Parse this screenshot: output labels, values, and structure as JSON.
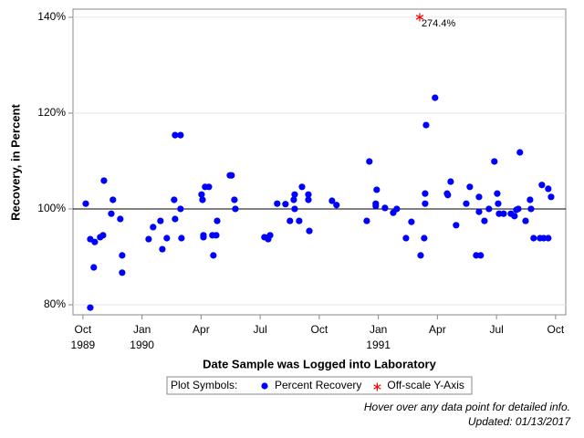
{
  "chart_data": {
    "type": "scatter",
    "ylabel": "Recovery, in Percent",
    "xlabel": "Date Sample was Logged into Laboratory",
    "xlim": [
      1989.708,
      1991.793
    ],
    "ylim": [
      77.9,
      141.7
    ],
    "xticks": [
      {
        "value": 1989.75,
        "label": "Oct"
      },
      {
        "value": 1990.0,
        "label": "Jan"
      },
      {
        "value": 1990.25,
        "label": "Apr"
      },
      {
        "value": 1990.5,
        "label": "Jul"
      },
      {
        "value": 1990.75,
        "label": "Oct"
      },
      {
        "value": 1991.0,
        "label": "Jan"
      },
      {
        "value": 1991.25,
        "label": "Apr"
      },
      {
        "value": 1991.5,
        "label": "Jul"
      },
      {
        "value": 1991.75,
        "label": "Oct"
      }
    ],
    "xtick_years": [
      {
        "value": 1989.75,
        "label": "1989"
      },
      {
        "value": 1990.0,
        "label": "1990"
      },
      {
        "value": 1991.0,
        "label": "1991"
      }
    ],
    "yticks": [
      {
        "value": 80,
        "label": "80%"
      },
      {
        "value": 100,
        "label": "100%"
      },
      {
        "value": 120,
        "label": "120%"
      },
      {
        "value": 140,
        "label": "140%"
      }
    ],
    "grid": true,
    "reference_line": 100,
    "legend_title": "Plot Symbols:",
    "series": [
      {
        "name": "Percent Recovery",
        "color": "#0000ff",
        "marker": "dot",
        "x": [
          1989.762,
          1989.781,
          1989.781,
          1989.796,
          1989.8,
          1989.823,
          1989.835,
          1989.839,
          1989.87,
          1989.877,
          1989.908,
          1989.916,
          1989.916,
          1990.028,
          1990.047,
          1990.078,
          1990.086,
          1990.105,
          1990.136,
          1990.14,
          1990.14,
          1990.163,
          1990.163,
          1990.167,
          1990.252,
          1990.256,
          1990.26,
          1990.26,
          1990.267,
          1990.283,
          1990.298,
          1990.302,
          1990.314,
          1990.318,
          1990.372,
          1990.379,
          1990.391,
          1990.395,
          1990.518,
          1990.534,
          1990.542,
          1990.572,
          1990.607,
          1990.626,
          1990.642,
          1990.646,
          1990.646,
          1990.665,
          1990.677,
          1990.704,
          1990.704,
          1990.708,
          1990.804,
          1990.823,
          1990.951,
          1990.962,
          1990.989,
          1990.989,
          1990.993,
          1991.028,
          1991.063,
          1991.078,
          1991.117,
          1991.14,
          1991.179,
          1991.194,
          1991.198,
          1991.198,
          1991.202,
          1991.24,
          1991.291,
          1991.294,
          1991.306,
          1991.329,
          1991.372,
          1991.387,
          1991.414,
          1991.426,
          1991.426,
          1991.433,
          1991.449,
          1991.468,
          1991.491,
          1991.503,
          1991.507,
          1991.511,
          1991.53,
          1991.561,
          1991.576,
          1991.584,
          1991.592,
          1991.599,
          1991.623,
          1991.642,
          1991.646,
          1991.657,
          1991.684,
          1991.692,
          1991.7,
          1991.719,
          1991.719,
          1991.731
        ],
        "values": [
          101.1,
          93.7,
          79.4,
          87.8,
          93.1,
          94.1,
          94.5,
          105.9,
          99.0,
          101.9,
          97.9,
          90.3,
          86.7,
          93.7,
          96.2,
          97.5,
          91.6,
          93.9,
          101.9,
          97.9,
          115.4,
          115.4,
          100.0,
          93.9,
          103.0,
          101.9,
          94.5,
          94.1,
          104.6,
          104.6,
          94.5,
          90.3,
          94.5,
          97.5,
          107.0,
          107.0,
          101.9,
          100.0,
          94.1,
          93.7,
          94.5,
          101.1,
          101.0,
          97.5,
          101.9,
          103.0,
          100.0,
          97.5,
          104.6,
          103.0,
          101.9,
          95.4,
          101.7,
          100.8,
          97.5,
          109.9,
          101.1,
          100.6,
          104.0,
          100.2,
          99.2,
          100.0,
          93.9,
          97.3,
          90.3,
          93.9,
          103.2,
          101.1,
          117.5,
          123.2,
          103.2,
          102.9,
          105.7,
          96.6,
          101.1,
          104.6,
          90.3,
          102.5,
          99.4,
          90.3,
          97.5,
          100.0,
          109.9,
          103.2,
          101.1,
          99.0,
          99.0,
          99.0,
          98.5,
          99.8,
          100.0,
          111.8,
          97.5,
          101.9,
          100.0,
          93.9,
          93.9,
          105.0,
          93.9,
          104.2,
          93.9,
          102.5
        ]
      },
      {
        "name": "Off-scale Y-Axis",
        "color": "#ff0000",
        "marker": "star",
        "x": [
          1991.175
        ],
        "values": [
          274.4
        ],
        "value_labels": [
          "274.4%"
        ]
      }
    ],
    "notes": [
      "Hover over any data point for detailed info.",
      "Updated: 01/13/2017"
    ]
  }
}
